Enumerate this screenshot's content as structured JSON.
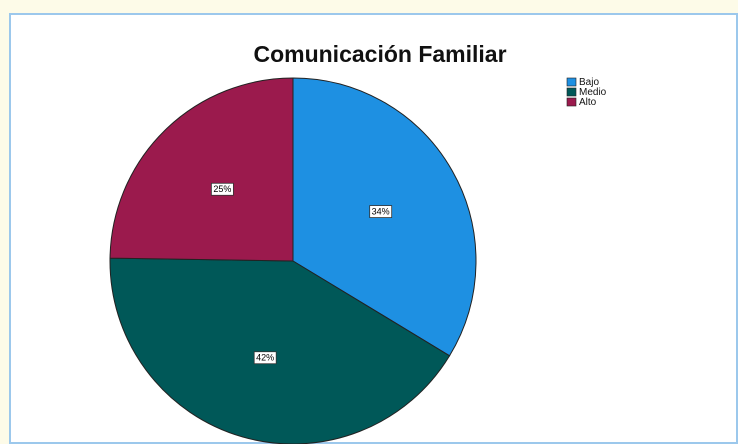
{
  "chart_data": {
    "type": "pie",
    "title": "Comunicación Familiar",
    "categories": [
      "Bajo",
      "Medio",
      "Alto"
    ],
    "values": [
      34,
      42,
      25
    ],
    "value_labels": [
      "34%",
      "42%",
      "25%"
    ],
    "colors": [
      "#1e90e2",
      "#005858",
      "#9b1a4d"
    ],
    "legend": "upper right"
  }
}
